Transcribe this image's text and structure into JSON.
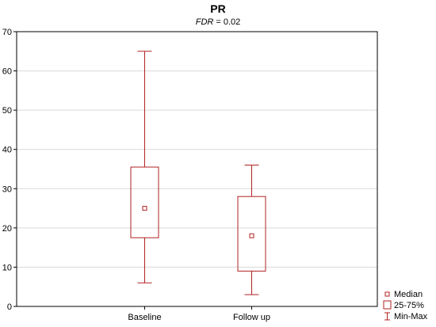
{
  "chart_data": {
    "type": "boxplot",
    "title": "PR",
    "subtitle": {
      "italic_part": "FDR",
      "rest": " = 0.02"
    },
    "xlabel": "",
    "ylabel": "",
    "ylim": [
      0,
      70
    ],
    "yticks": [
      0,
      10,
      20,
      30,
      40,
      50,
      60,
      70
    ],
    "grid": true,
    "legend_position": "bottom-right",
    "color": "#b22222",
    "categories": [
      "Baseline",
      "Follow up"
    ],
    "boxes": [
      {
        "category": "Baseline",
        "min": 6,
        "q1": 17.5,
        "median": 25,
        "q3": 35.5,
        "max": 65
      },
      {
        "category": "Follow up",
        "min": 3,
        "q1": 9,
        "median": 18,
        "q3": 28,
        "max": 36
      }
    ],
    "legend": [
      "Median",
      "25-75%",
      "Min-Max"
    ]
  }
}
